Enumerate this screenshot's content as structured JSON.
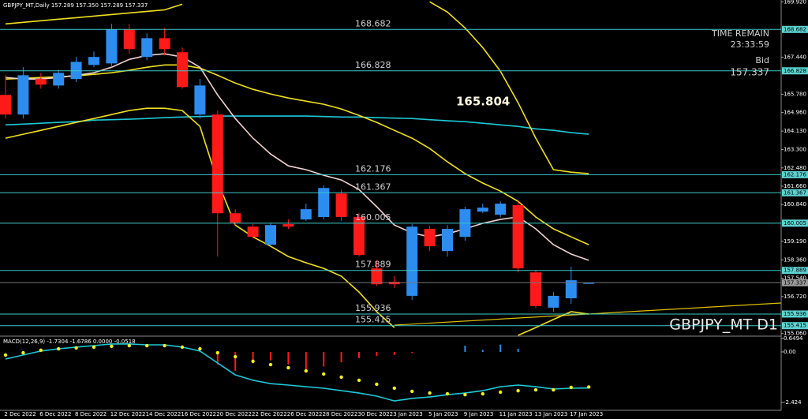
{
  "chart_data": [
    {
      "type": "candlestick",
      "title": "GBPJPY_MT,Daily 157.289 157.350 157.289 157.337",
      "watermark": "GBPJPY_MT D1",
      "annotation": "165.804",
      "time_label": "TIME REMAIN",
      "time": "23:33:59",
      "bid_label": "Bid",
      "bid": 157.337,
      "categories": [
        null,
        "2 Dec 2022",
        null,
        "6 Dec 2022",
        null,
        "8 Dec 2022",
        null,
        "12 Dec 2022",
        null,
        "14 Dec 2022",
        null,
        "16 Dec 2022",
        null,
        "20 Dec 2022",
        null,
        "22 Dec 2022",
        null,
        "26 Dec 2022",
        null,
        "28 Dec 2022",
        null,
        "30 Dec 2022",
        null,
        "3 Jan 2023",
        null,
        "5 Jan 2023",
        null,
        "9 Jan 2023",
        null,
        "11 Jan 2023",
        null,
        "13 Jan 2023",
        null,
        "17 Jan 2023"
      ],
      "open": [
        165.75,
        164.87,
        166.46,
        166.17,
        166.46,
        167.09,
        167.16,
        168.68,
        167.45,
        168.29,
        167.66,
        164.87,
        164.87,
        160.45,
        159.85,
        159.04,
        159.96,
        160.17,
        160.28,
        161.33,
        160.28,
        157.98,
        157.38,
        156.75,
        159.75,
        158.76,
        159.39,
        160.52,
        160.38,
        160.81,
        157.8,
        156.22,
        156.64,
        157.289
      ],
      "high": [
        166.63,
        166.99,
        166.74,
        166.88,
        167.45,
        167.69,
        168.93,
        168.93,
        168.5,
        168.75,
        167.87,
        166.46,
        165.05,
        160.63,
        159.96,
        160.03,
        160.17,
        160.88,
        161.69,
        161.51,
        160.45,
        158.34,
        157.63,
        159.96,
        159.89,
        159.92,
        160.74,
        160.88,
        160.98,
        160.98,
        157.91,
        156.92,
        158.05,
        157.35
      ],
      "low": [
        164.69,
        164.69,
        166.03,
        166.03,
        166.32,
        166.99,
        166.99,
        167.59,
        167.3,
        167.52,
        166.03,
        164.69,
        158.51,
        159.92,
        159.32,
        158.97,
        159.75,
        160.1,
        160.17,
        160.1,
        158.51,
        157.2,
        157.1,
        156.57,
        158.76,
        158.51,
        159.22,
        160.45,
        160.28,
        157.8,
        156.22,
        156.04,
        156.39,
        157.289
      ],
      "close": [
        164.87,
        166.63,
        166.21,
        166.74,
        167.23,
        167.45,
        168.68,
        167.8,
        168.29,
        167.8,
        166.1,
        166.17,
        160.45,
        160.03,
        159.39,
        159.92,
        159.85,
        160.63,
        161.58,
        160.28,
        158.58,
        157.27,
        157.27,
        159.85,
        158.97,
        159.75,
        160.63,
        160.7,
        160.88,
        157.98,
        156.29,
        156.75,
        157.45,
        157.337
      ],
      "up_color": "#2d8cf0",
      "down_color": "#ff1a1a",
      "series": [
        {
          "color": "#1ec8d8",
          "values": [
            164.41,
            164.44,
            164.48,
            164.52,
            164.55,
            164.62,
            164.64,
            164.66,
            164.69,
            164.73,
            164.76,
            164.78,
            164.8,
            164.8,
            164.8,
            164.8,
            164.8,
            164.8,
            164.78,
            164.76,
            164.76,
            164.73,
            164.71,
            164.69,
            164.64,
            164.59,
            164.55,
            164.48,
            164.41,
            164.34,
            164.23,
            164.16,
            164.06,
            163.99
          ]
        },
        {
          "color": "#f0e020",
          "values": [
            166.46,
            166.49,
            166.53,
            166.56,
            166.6,
            166.67,
            166.74,
            166.85,
            166.99,
            167.09,
            167.09,
            166.95,
            166.63,
            166.28,
            166.0,
            165.79,
            165.61,
            165.47,
            165.33,
            165.12,
            164.83,
            164.52,
            164.16,
            163.81,
            163.35,
            162.75,
            162.22,
            161.8,
            161.44,
            160.98,
            160.28,
            159.75,
            159.39,
            159.04
          ]
        },
        {
          "color": "#f0e020",
          "values": [
            163.81,
            163.99,
            164.16,
            164.34,
            164.52,
            164.69,
            164.87,
            165.05,
            165.15,
            165.15,
            165.05,
            164.34,
            161.87,
            159.92,
            159.39,
            158.97,
            158.51,
            158.23,
            157.98,
            157.63,
            156.92,
            156.04,
            155.33,
            null,
            null,
            null,
            null,
            null,
            null,
            154.98,
            155.33,
            155.69,
            156.04,
            155.93
          ]
        },
        {
          "color": "#f0e020",
          "values": [
            168.93,
            169.0,
            169.07,
            169.14,
            169.21,
            169.28,
            169.35,
            169.42,
            169.49,
            169.56,
            169.81,
            null,
            null,
            null,
            null,
            null,
            null,
            null,
            null,
            null,
            null,
            null,
            null,
            null,
            169.92,
            169.46,
            168.75,
            167.87,
            166.81,
            165.4,
            163.81,
            162.4,
            162.29,
            162.22
          ]
        },
        {
          "color": "#f0d0d0",
          "values": [
            166.53,
            166.46,
            166.46,
            166.53,
            166.63,
            166.74,
            166.99,
            167.34,
            167.52,
            167.59,
            167.45,
            166.99,
            165.75,
            164.69,
            163.81,
            163.1,
            162.57,
            162.4,
            162.15,
            161.94,
            161.51,
            160.74,
            159.92,
            159.57,
            159.39,
            159.53,
            159.75,
            160.0,
            160.17,
            160.28,
            159.75,
            159.04,
            158.62,
            158.34
          ]
        }
      ],
      "levels": [
        168.682,
        166.828,
        162.176,
        161.367,
        160.005,
        157.889,
        155.936,
        155.415
      ],
      "level_color": "#3cc8c8",
      "ylim": [
        154.98,
        170.0
      ],
      "yticks": [
        {
          "value": 169.92,
          "label": "169.920"
        },
        {
          "value": 167.44,
          "label": "167.440"
        },
        {
          "value": 165.78,
          "label": "165.780"
        },
        {
          "value": 164.96,
          "label": "164.960"
        },
        {
          "value": 164.13,
          "label": "164.130"
        },
        {
          "value": 163.3,
          "label": "163.300"
        },
        {
          "value": 162.48,
          "label": "162.480"
        },
        {
          "value": 161.66,
          "label": "161.660"
        },
        {
          "value": 160.84,
          "label": "160.840"
        },
        {
          "value": 159.19,
          "label": "159.190"
        },
        {
          "value": 158.36,
          "label": "158.360"
        },
        {
          "value": 157.54,
          "label": "157.540"
        },
        {
          "value": 156.72,
          "label": "156.720"
        },
        {
          "value": 155.06,
          "label": "155.060"
        }
      ]
    },
    {
      "type": "macd",
      "title": "MACD(12,26,9) -1.7304 -1.6786 0.0000 -0.0518",
      "histogram": [
        null,
        null,
        null,
        null,
        null,
        null,
        null,
        null,
        null,
        null,
        null,
        null,
        -0.6,
        -0.9,
        -0.55,
        -0.4,
        -0.6,
        -0.9,
        -0.7,
        -0.5,
        -0.3,
        -0.2,
        -0.15,
        -0.05,
        null,
        null,
        0.3,
        0.1,
        0.35,
        0.15,
        null,
        null,
        null,
        null
      ],
      "positive_color": "#2d8cf0",
      "negative_color": "#ff1a1a",
      "series": [
        {
          "style": "line",
          "color": "#1ec8d8",
          "values": [
            -0.34,
            -0.15,
            0.04,
            0.15,
            0.23,
            0.3,
            0.38,
            0.38,
            0.34,
            0.34,
            0.23,
            0.04,
            -0.53,
            -1.1,
            -1.36,
            -1.52,
            -1.59,
            -1.67,
            -1.74,
            -1.86,
            -1.97,
            -2.12,
            -2.35,
            -2.23,
            -2.16,
            -2.05,
            -1.97,
            -1.86,
            -1.67,
            -1.59,
            -1.67,
            -1.78,
            -1.74,
            -1.73
          ]
        },
        {
          "style": "dots",
          "color": "#f0f020",
          "values": [
            -0.15,
            -0.04,
            0.08,
            0.15,
            0.19,
            0.23,
            0.27,
            0.3,
            0.3,
            0.3,
            0.23,
            0.15,
            -0.04,
            -0.23,
            -0.45,
            -0.61,
            -0.76,
            -0.91,
            -1.06,
            -1.21,
            -1.36,
            -1.55,
            -1.74,
            -1.89,
            -1.97,
            -2.01,
            -2.05,
            -2.01,
            -1.93,
            -1.86,
            -1.82,
            -1.82,
            -1.7,
            -1.68
          ]
        }
      ],
      "ylim": [
        -2.8,
        0.68
      ],
      "yticks": [
        0.6494,
        {
          "value": 0,
          "label": "0.00"
        },
        -2.424
      ]
    }
  ]
}
